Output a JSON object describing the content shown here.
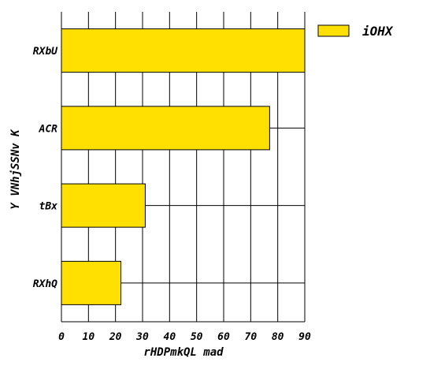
{
  "chart_data": {
    "type": "bar",
    "orientation": "horizontal",
    "categories": [
      "RXbU",
      "ACR",
      "tBx",
      "RXhQ"
    ],
    "series": [
      {
        "name": "iOHX",
        "values": [
          90,
          77,
          31,
          22
        ],
        "color": "#FFE000"
      }
    ],
    "xlabel": "rHDPmkQL mad",
    "ylabel": "Y VNhjSSNv K",
    "xlim": [
      0,
      90
    ],
    "xticks": [
      0,
      10,
      20,
      30,
      40,
      50,
      60,
      70,
      80,
      90
    ],
    "grid": true,
    "legend_position": "top-right"
  },
  "colors": {
    "bar_fill": "#FFE000",
    "bar_stroke": "#000000",
    "grid": "#000000",
    "background": "#ffffff"
  }
}
